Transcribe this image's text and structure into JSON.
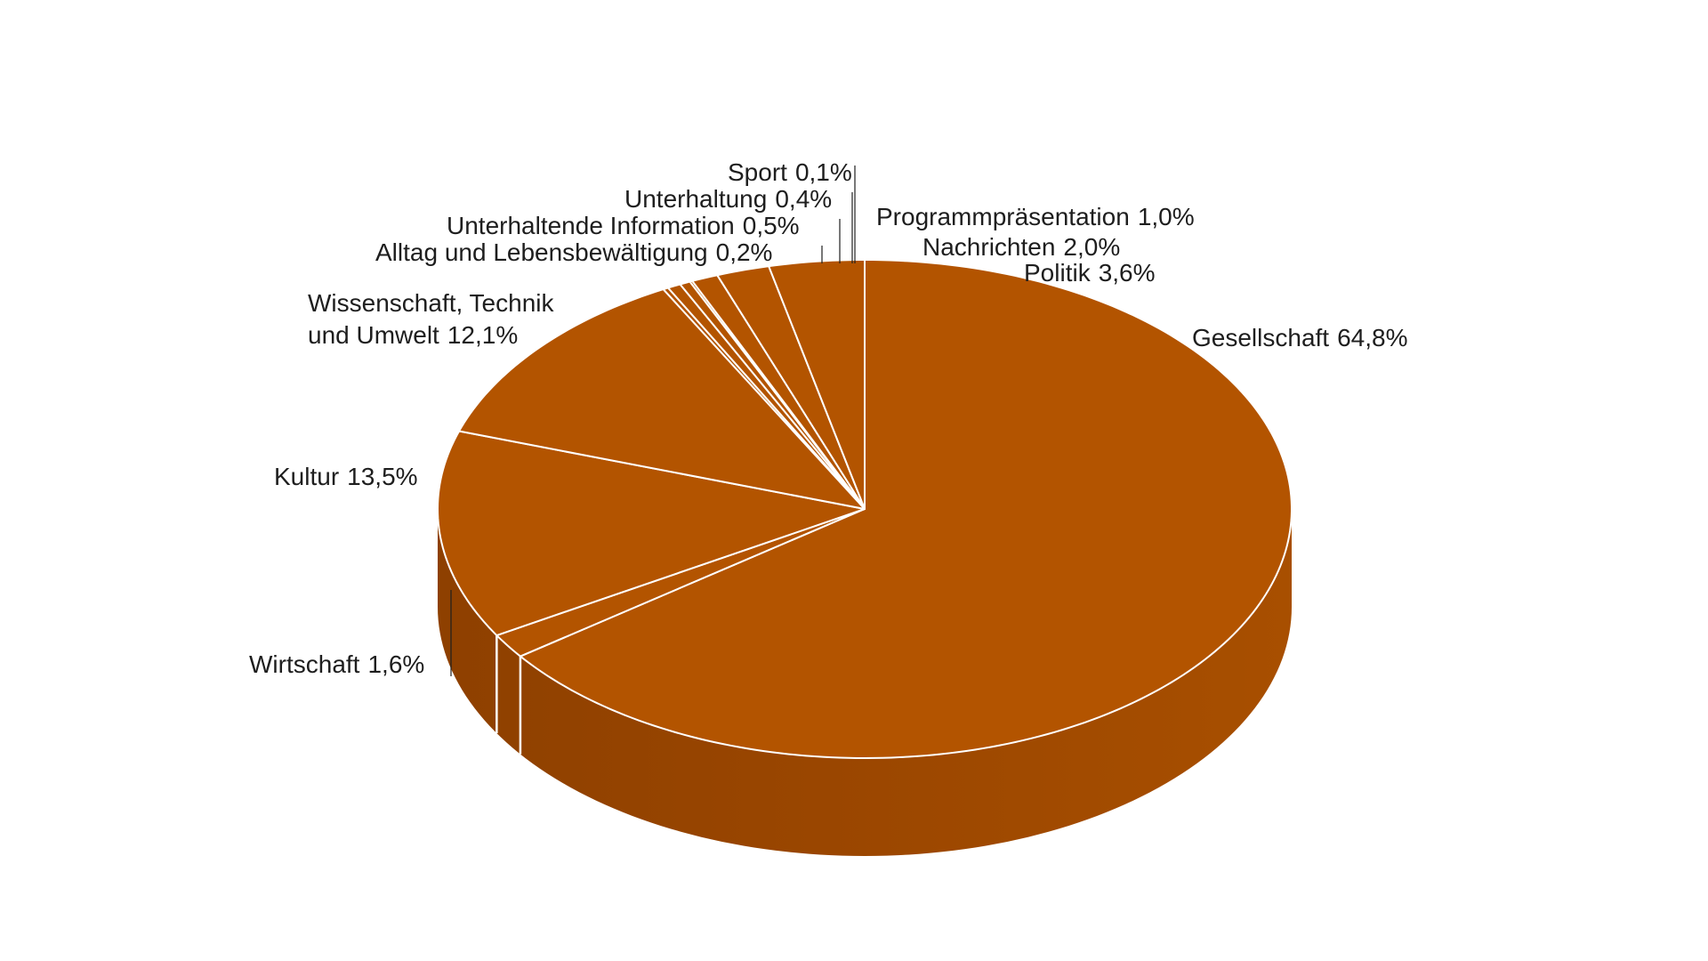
{
  "chart_data": {
    "type": "pie",
    "style": "3d",
    "start_angle_deg": 90,
    "direction": "clockwise",
    "colors": {
      "top": "#B35400",
      "side_dark": "#8C3F00",
      "side_light": "#A24C00",
      "separator": "#ffffff",
      "label_text": "#1e1e1e"
    },
    "slices": [
      {
        "label": "Gesellschaft",
        "value": 64.8,
        "display": "64,8%"
      },
      {
        "label": "Wirtschaft",
        "value": 1.6,
        "display": "1,6%"
      },
      {
        "label": "Kultur",
        "value": 13.5,
        "display": "13,5%"
      },
      {
        "label": "Wissenschaft, Technik und Umwelt",
        "label_lines": [
          "Wissenschaft, Technik",
          "und Umwelt"
        ],
        "value": 12.1,
        "display": "12,1%"
      },
      {
        "label": "Alltag und Lebensbewältigung",
        "value": 0.2,
        "display": "0,2%"
      },
      {
        "label": "Unterhaltende Information",
        "value": 0.5,
        "display": "0,5%"
      },
      {
        "label": "Unterhaltung",
        "value": 0.4,
        "display": "0,4%"
      },
      {
        "label": "Sport",
        "value": 0.1,
        "display": "0,1%"
      },
      {
        "label": "Programmpräsentation",
        "value": 1.0,
        "display": "1,0%"
      },
      {
        "label": "Nachrichten",
        "value": 2.0,
        "display": "2,0%"
      },
      {
        "label": "Politik",
        "value": 3.6,
        "display": "3,6%"
      }
    ]
  }
}
